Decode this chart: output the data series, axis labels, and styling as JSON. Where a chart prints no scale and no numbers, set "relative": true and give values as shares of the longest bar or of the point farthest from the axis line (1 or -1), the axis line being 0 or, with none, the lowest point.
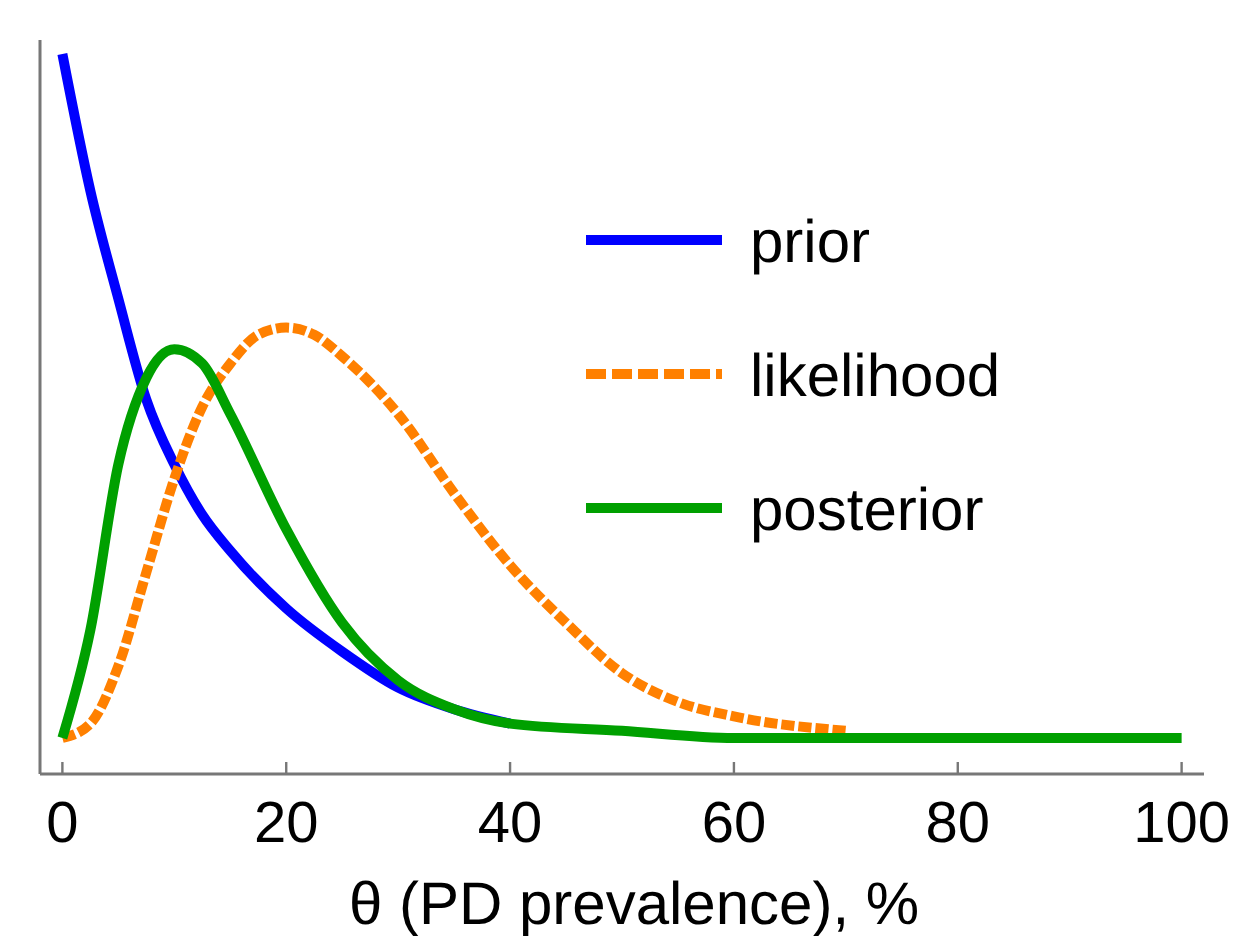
{
  "chart_data": {
    "type": "line",
    "relative": true,
    "xlabel": "θ (PD prevalence), %",
    "xlim": [
      -2,
      102
    ],
    "xticks": [
      0,
      20,
      40,
      60,
      80,
      100
    ],
    "legend": "right",
    "grid": false,
    "marker": "none",
    "series": [
      {
        "name": "prior",
        "color": "#0000ff",
        "line_style": "solid",
        "x": [
          0,
          2.5,
          5,
          7.5,
          10,
          12.5,
          15,
          20,
          25,
          30,
          35,
          40
        ],
        "values": [
          1,
          0.81,
          0.66,
          0.52,
          0.43,
          0.36,
          0.31,
          0.23,
          0.17,
          0.12,
          0.09,
          0.07
        ]
      },
      {
        "name": "likelihood",
        "color": "#ff8000",
        "line_style": "dashed",
        "x": [
          0,
          2.5,
          5,
          7.5,
          10,
          12.5,
          15,
          17.5,
          20,
          22.5,
          25,
          30,
          35,
          40,
          45,
          50,
          55,
          60,
          70
        ],
        "values": [
          0.05,
          0.07,
          0.15,
          0.28,
          0.41,
          0.51,
          0.57,
          0.61,
          0.62,
          0.61,
          0.58,
          0.5,
          0.39,
          0.29,
          0.21,
          0.14,
          0.1,
          0.08,
          0.06
        ]
      },
      {
        "name": "posterior",
        "color": "#00a000",
        "line_style": "solid",
        "x": [
          0,
          2.5,
          5,
          7.5,
          10,
          12.5,
          15,
          20,
          25,
          30,
          35,
          40,
          50,
          60,
          80,
          100
        ],
        "values": [
          0.05,
          0.2,
          0.43,
          0.55,
          0.59,
          0.57,
          0.5,
          0.34,
          0.21,
          0.13,
          0.09,
          0.07,
          0.06,
          0.05,
          0.05,
          0.05
        ]
      }
    ]
  }
}
